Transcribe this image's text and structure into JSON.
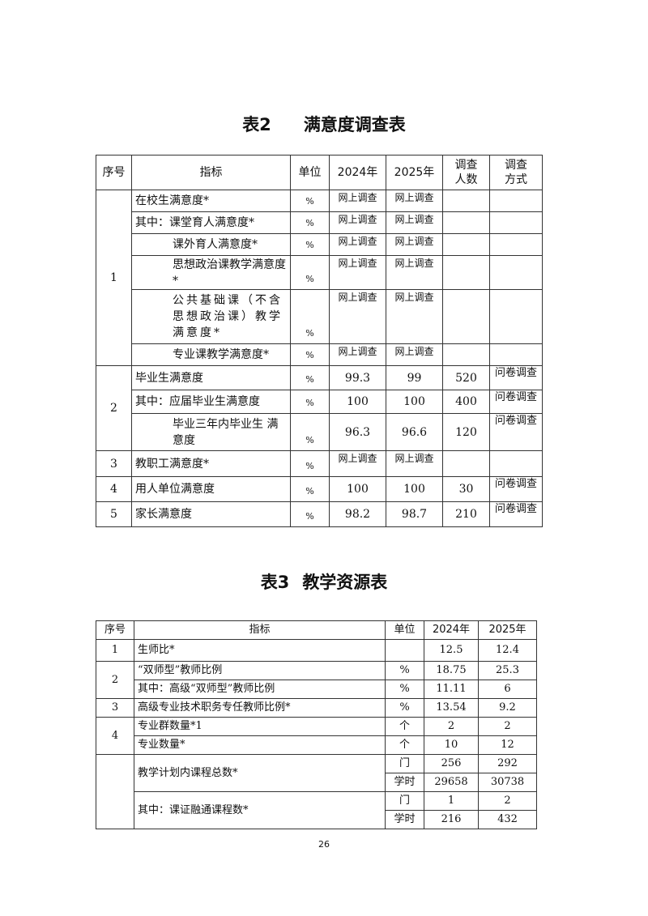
{
  "table2": {
    "title_num": "表2",
    "title_text": "满意度调查表",
    "headers": [
      "序号",
      "指标",
      "单位",
      "2024年",
      "2025年",
      "调查人数",
      "调查方式"
    ],
    "groups": [
      {
        "seq": "1",
        "rows": [
          {
            "indicator": "在校生满意度*",
            "indent": false,
            "unit": "%",
            "y2024": "网上调查",
            "y2025": "网上调查",
            "count": "",
            "method": ""
          },
          {
            "indicator": "其中：课堂育人满意度*",
            "indent": false,
            "unit": "%",
            "y2024": "网上调查",
            "y2025": "网上调查",
            "count": "",
            "method": ""
          },
          {
            "indicator": "课外育人满意度*",
            "indent": true,
            "unit": "%",
            "y2024": "网上调查",
            "y2025": "网上调查",
            "count": "",
            "method": ""
          },
          {
            "indicator": "思想政治课教学满意度*",
            "indent": true,
            "unit": "%",
            "y2024": "网上调查",
            "y2025": "网上调查",
            "count": "",
            "method": ""
          },
          {
            "indicator": "公共基础课（不含 思想政治课）教学 满意度*",
            "indent": true,
            "unit": "%",
            "y2024": "网上调查",
            "y2025": "网上调查",
            "count": "",
            "method": ""
          },
          {
            "indicator": "专业课教学满意度*",
            "indent": true,
            "unit": "%",
            "y2024": "网上调查",
            "y2025": "网上调查",
            "count": "",
            "method": ""
          }
        ]
      },
      {
        "seq": "2",
        "rows": [
          {
            "indicator": "毕业生满意度",
            "indent": false,
            "unit": "%",
            "y2024": "99.3",
            "y2025": "99",
            "count": "520",
            "method": "问卷调查"
          },
          {
            "indicator": "其中：应届毕业生满意度",
            "indent": false,
            "unit": "%",
            "y2024": "100",
            "y2025": "100",
            "count": "400",
            "method": "问卷调查"
          },
          {
            "indicator": "毕业三年内毕业生 满意度",
            "indent": true,
            "unit": "%",
            "y2024": "96.3",
            "y2025": "96.6",
            "count": "120",
            "method": "问卷调查"
          }
        ]
      },
      {
        "seq": "3",
        "rows": [
          {
            "indicator": "教职工满意度*",
            "indent": false,
            "unit": "%",
            "y2024": "网上调查",
            "y2025": "网上调查",
            "count": "",
            "method": ""
          }
        ]
      },
      {
        "seq": "4",
        "rows": [
          {
            "indicator": "用人单位满意度",
            "indent": false,
            "unit": "%",
            "y2024": "100",
            "y2025": "100",
            "count": "30",
            "method": "问卷调查"
          }
        ]
      },
      {
        "seq": "5",
        "rows": [
          {
            "indicator": "家长满意度",
            "indent": false,
            "unit": "%",
            "y2024": "98.2",
            "y2025": "98.7",
            "count": "210",
            "method": "问卷调查"
          }
        ]
      }
    ]
  },
  "table3": {
    "title_num": "表3",
    "title_text": "教学资源表",
    "headers": [
      "序号",
      "指标",
      "单位",
      "2024年",
      "2025年"
    ],
    "groups": [
      {
        "seq": "1",
        "items": [
          {
            "indicator": "生师比*",
            "sub": [
              {
                "unit": "",
                "y2024": "12.5",
                "y2025": "12.4"
              }
            ]
          }
        ]
      },
      {
        "seq": "2",
        "items": [
          {
            "indicator": "“双师型”教师比例",
            "sub": [
              {
                "unit": "%",
                "y2024": "18.75",
                "y2025": "25.3"
              }
            ]
          },
          {
            "indicator": "其中：高级“双师型”教师比例",
            "sub": [
              {
                "unit": "%",
                "y2024": "11.11",
                "y2025": "6"
              }
            ]
          }
        ]
      },
      {
        "seq": "3",
        "items": [
          {
            "indicator": "高级专业技术职务专任教师比例*",
            "sub": [
              {
                "unit": "%",
                "y2024": "13.54",
                "y2025": "9.2"
              }
            ]
          }
        ]
      },
      {
        "seq": "4",
        "items": [
          {
            "indicator": "专业群数量*1",
            "sub": [
              {
                "unit": "个",
                "y2024": "2",
                "y2025": "2"
              }
            ]
          },
          {
            "indicator": "专业数量*",
            "sub": [
              {
                "unit": "个",
                "y2024": "10",
                "y2025": "12"
              }
            ]
          }
        ]
      },
      {
        "seq": "",
        "items": [
          {
            "indicator": "教学计划内课程总数*",
            "sub": [
              {
                "unit": "门",
                "y2024": "256",
                "y2025": "292"
              },
              {
                "unit": "学时",
                "y2024": "29658",
                "y2025": "30738"
              }
            ]
          },
          {
            "indicator": "其中：课证融通课程数*",
            "sub": [
              {
                "unit": "门",
                "y2024": "1",
                "y2025": "2"
              },
              {
                "unit": "学时",
                "y2024": "216",
                "y2025": "432"
              }
            ]
          }
        ]
      }
    ]
  },
  "page_number": "26"
}
